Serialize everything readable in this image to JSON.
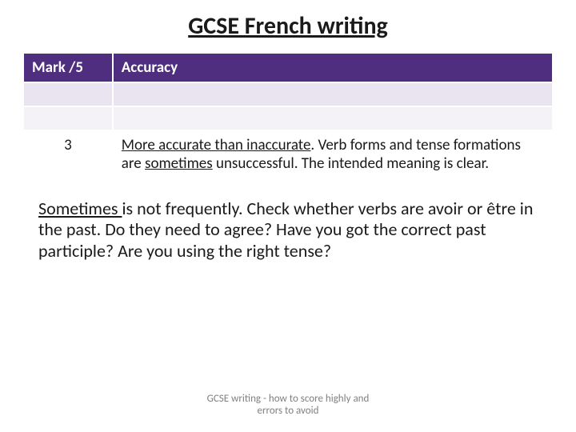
{
  "title": "GCSE French writing",
  "table": {
    "header": {
      "mark": "Mark /5",
      "accuracy": "Accuracy"
    },
    "row": {
      "mark": "3",
      "desc_part1": "More accurate than inaccurate",
      "desc_part2": ".  Verb forms and tense formations are ",
      "desc_part3": "sometimes",
      "desc_part4": " unsuccessful.  The intended meaning is clear."
    },
    "colors": {
      "header_bg": "#4f2d7f",
      "header_text": "#ffffff",
      "empty1_bg": "#e9e4ef",
      "empty2_bg": "#f4f2f7",
      "content_bg": "#ffffff",
      "border": "#ffffff"
    }
  },
  "body": {
    "part1": "Sometimes ",
    "part2": "is not frequently.  Check whether verbs are avoir or être in the past.  Do they need to agree?  Have you got the correct past participle?  Are you using the right tense?"
  },
  "footer": {
    "line1": "GCSE writing - how to score highly and",
    "line2": "errors to avoid"
  }
}
